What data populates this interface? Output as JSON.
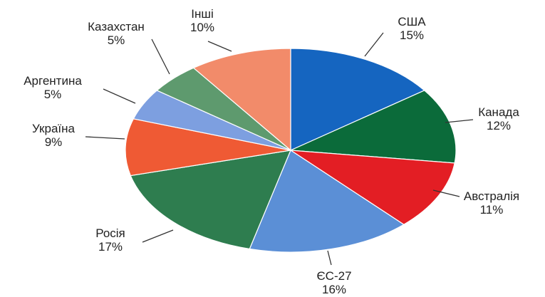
{
  "chart_data": {
    "type": "pie",
    "title": "",
    "start_angle_deg": 0,
    "direction": "clockwise",
    "legend": "none",
    "slices": [
      {
        "label": "США",
        "value": 15,
        "value_label": "15%",
        "color": "#1565c0"
      },
      {
        "label": "Канада",
        "value": 12,
        "value_label": "12%",
        "color": "#0b6b3a"
      },
      {
        "label": "Австралія",
        "value": 11,
        "value_label": "11%",
        "color": "#e31e24"
      },
      {
        "label": "ЄС-27",
        "value": 16,
        "value_label": "16%",
        "color": "#5b8fd6"
      },
      {
        "label": "Росія",
        "value": 17,
        "value_label": "17%",
        "color": "#2e7d4f"
      },
      {
        "label": "Україна",
        "value": 9,
        "value_label": "9%",
        "color": "#ef5a34"
      },
      {
        "label": "Аргентина",
        "value": 5,
        "value_label": "5%",
        "color": "#7d9fe0"
      },
      {
        "label": "Казахстан",
        "value": 5,
        "value_label": "5%",
        "color": "#5e9a6e"
      },
      {
        "label": "Інші",
        "value": 10,
        "value_label": "10%",
        "color": "#f28b6a"
      }
    ]
  }
}
